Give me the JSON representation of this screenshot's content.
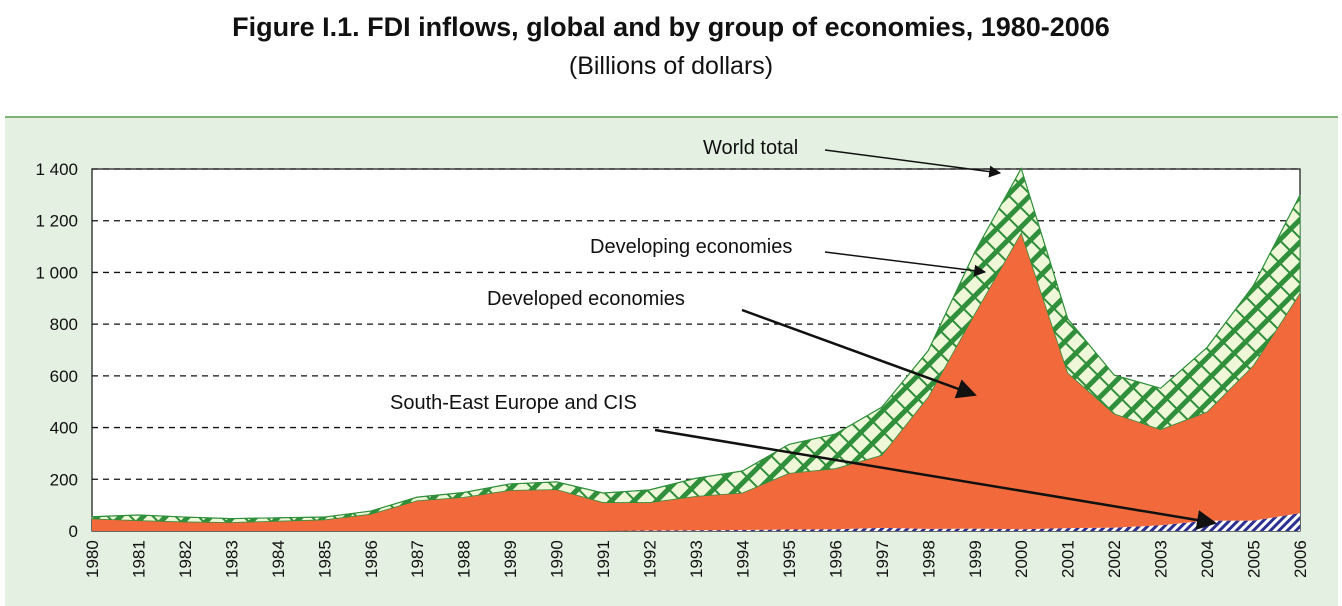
{
  "title": "Figure I.1. FDI inflows, global and by group of economies, 1980-2006",
  "subtitle": "(Billions of dollars)",
  "chart_data": {
    "type": "area",
    "stacked": true,
    "x": [
      1980,
      1981,
      1982,
      1983,
      1984,
      1985,
      1986,
      1987,
      1988,
      1989,
      1990,
      1991,
      1992,
      1993,
      1994,
      1995,
      1996,
      1997,
      1998,
      1999,
      2000,
      2001,
      2002,
      2003,
      2004,
      2005,
      2006
    ],
    "x_tick_labels": [
      "1980",
      "1981",
      "1982",
      "1983",
      "1984",
      "1985",
      "1986",
      "1987",
      "1988",
      "1989",
      "1990",
      "1991",
      "1992",
      "1993",
      "1994",
      "1995",
      "1996",
      "1997",
      "1998",
      "1999",
      "2000",
      "2001",
      "2002",
      "2003",
      "2004",
      "2005",
      "2006"
    ],
    "y_tick_labels": [
      "0",
      "200",
      "400",
      "600",
      "800",
      "1 000",
      "1 200",
      "1 400"
    ],
    "y_ticks": [
      0,
      200,
      400,
      600,
      800,
      1000,
      1200,
      1400
    ],
    "ylim": [
      0,
      1400
    ],
    "grid": "horizontal dashed",
    "series": [
      {
        "name": "South-East Europe and CIS",
        "color": "#2b2f8f",
        "pattern": "diagonal-hatch",
        "values": [
          0,
          0,
          0,
          0,
          0,
          0,
          0,
          0,
          0,
          0,
          0,
          0,
          2,
          3,
          4,
          6,
          7,
          12,
          8,
          9,
          7,
          11,
          13,
          22,
          40,
          40,
          69
        ]
      },
      {
        "name": "Developed economies",
        "color": "#f26a3c",
        "pattern": "solid",
        "values": [
          47,
          40,
          35,
          33,
          38,
          43,
          65,
          117,
          130,
          157,
          160,
          110,
          108,
          131,
          143,
          217,
          234,
          281,
          510,
          830,
          1145,
          600,
          440,
          370,
          420,
          600,
          850
        ]
      },
      {
        "name": "Developing economies",
        "color": "#2f8f3a",
        "pattern": "green-hatch",
        "values": [
          8,
          22,
          19,
          15,
          13,
          11,
          12,
          14,
          19,
          25,
          30,
          37,
          49,
          70,
          85,
          112,
          134,
          186,
          180,
          240,
          250,
          210,
          150,
          160,
          250,
          310,
          380
        ]
      }
    ],
    "total": {
      "name": "World total",
      "values": [
        55,
        62,
        54,
        48,
        51,
        54,
        77,
        131,
        149,
        182,
        190,
        147,
        159,
        204,
        232,
        335,
        375,
        479,
        698,
        1079,
        1402,
        821,
        603,
        552,
        710,
        950,
        1299
      ]
    },
    "annotations": [
      "World total",
      "Developing economies",
      "Developed economies",
      "South-East Europe and CIS"
    ]
  }
}
